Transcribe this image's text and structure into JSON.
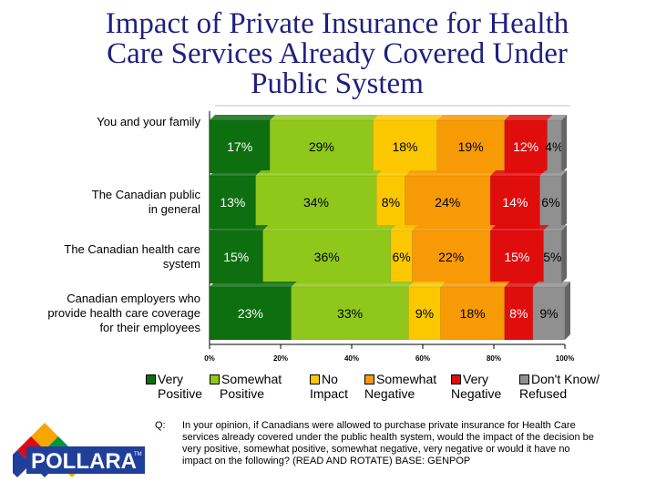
{
  "title_lines": [
    "Impact of Private Insurance for Health",
    "Care Services Already Covered Under",
    "Public System"
  ],
  "chart_data": {
    "type": "bar",
    "orientation": "horizontal",
    "stacked": true,
    "title": "Impact of Private Insurance for Health Care Services Already Covered Under Public System",
    "categories": [
      "You and your family",
      "The Canadian public in general",
      "The Canadian health care system",
      "Canadian employers who provide health care coverage for their employees"
    ],
    "category_lines": [
      [
        "You and your family"
      ],
      [
        "The Canadian public",
        "in general"
      ],
      [
        "The Canadian health care",
        "system"
      ],
      [
        "Canadian employers who",
        "provide health care coverage",
        "for their employees"
      ]
    ],
    "series": [
      {
        "name": "Very Positive",
        "legend_lines": [
          "Very",
          "Positive"
        ],
        "color": "#0e6f10",
        "values": [
          17,
          13,
          15,
          23
        ],
        "labels": [
          "17%",
          "13%",
          "15%",
          "23%"
        ]
      },
      {
        "name": "Somewhat Positive",
        "legend_lines": [
          "Somewhat",
          "Positive"
        ],
        "color": "#8fc81a",
        "values": [
          29,
          34,
          36,
          33
        ],
        "labels": [
          "29%",
          "34%",
          "36%",
          "33%"
        ]
      },
      {
        "name": "No Impact",
        "legend_lines": [
          "No",
          "Impact"
        ],
        "color": "#fbc800",
        "values": [
          18,
          8,
          6,
          9
        ],
        "labels": [
          "18%",
          "8%",
          "6%",
          "9%"
        ]
      },
      {
        "name": "Somewhat Negative",
        "legend_lines": [
          "Somewhat",
          "Negative"
        ],
        "color": "#f79a05",
        "values": [
          19,
          24,
          22,
          18
        ],
        "labels": [
          "19%",
          "24%",
          "22%",
          "18%"
        ]
      },
      {
        "name": "Very Negative",
        "legend_lines": [
          "Very",
          "Negative"
        ],
        "color": "#e00d0d",
        "values": [
          12,
          14,
          15,
          8
        ],
        "labels": [
          "12%",
          "14%",
          "15%",
          "8%"
        ]
      },
      {
        "name": "Don't Know/ Refused",
        "legend_lines": [
          "Don't Know/",
          "Refused"
        ],
        "color": "#909090",
        "values": [
          4,
          6,
          5,
          9
        ],
        "labels": [
          "4%",
          "6%",
          "5%",
          "9%"
        ]
      }
    ],
    "xlim": [
      0,
      100
    ],
    "xticks": [
      "0%",
      "20%",
      "40%",
      "60%",
      "80%",
      "100%"
    ],
    "xlabel": "",
    "ylabel": "",
    "legend_position": "bottom"
  },
  "question_label": "Q:",
  "question_text": "In your opinion, if Canadians were allowed to purchase private insurance for Health Care services already covered under the public health system, would the impact of the decision be very positive, somewhat positive, somewhat negative, very negative or would it have no impact on the following? (READ AND ROTATE) BASE: GENPOP",
  "logo_text": "POLLARA",
  "logo_tm": "TM"
}
